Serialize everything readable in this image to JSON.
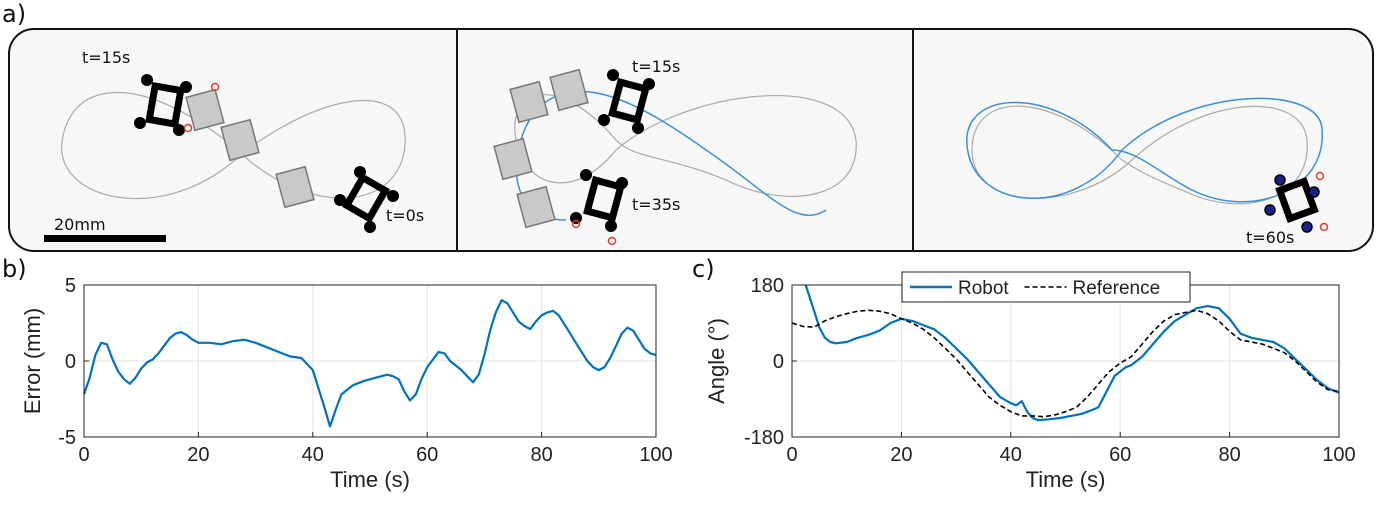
{
  "panel_labels": {
    "a": "a)",
    "b": "b)",
    "c": "c)"
  },
  "photo_panel": {
    "scale_bar_label": "20mm",
    "time_labels": {
      "p1_start": "t=15s",
      "p1_end": "t=0s",
      "p2_top": "t=15s",
      "p2_bottom": "t=35s",
      "p3": "t=60s"
    },
    "colors": {
      "robot": "#000000",
      "ghost_robot": "#c8c8c8",
      "reference_path": "#a8a8a8",
      "robot_path": "#3b8fd8",
      "target_marker": "#e03c31"
    }
  },
  "chart_data": [
    {
      "type": "line",
      "title": "",
      "xlabel": "Time (s)",
      "ylabel": "Error (mm)",
      "xlim": [
        0,
        100
      ],
      "ylim": [
        -5,
        5
      ],
      "xticks": [
        0,
        20,
        40,
        60,
        80,
        100
      ],
      "yticks": [
        -5,
        0,
        5
      ],
      "grid": true,
      "series": [
        {
          "color": "#0072bd",
          "x": [
            0,
            1,
            2,
            3,
            4,
            5,
            6,
            7,
            8,
            9,
            10,
            11,
            12,
            13,
            14,
            15,
            16,
            17,
            18,
            19,
            20,
            22,
            24,
            26,
            28,
            30,
            32,
            34,
            36,
            38,
            40,
            41,
            42,
            43,
            44,
            45,
            47,
            49,
            51,
            53,
            54,
            55,
            56,
            57,
            58,
            59,
            60,
            62,
            63,
            64,
            66,
            67,
            68,
            69,
            70,
            71,
            72,
            73,
            74,
            75,
            76,
            77,
            78,
            79,
            80,
            81,
            82,
            83,
            84,
            85,
            86,
            87,
            88,
            89,
            90,
            91,
            92,
            93,
            94,
            95,
            96,
            97,
            98,
            99,
            100
          ],
          "values": [
            -2.2,
            -1.1,
            0.4,
            1.2,
            1.1,
            0.1,
            -0.7,
            -1.2,
            -1.5,
            -1.1,
            -0.5,
            -0.1,
            0.1,
            0.5,
            1.0,
            1.5,
            1.8,
            1.9,
            1.7,
            1.4,
            1.2,
            1.2,
            1.1,
            1.3,
            1.4,
            1.2,
            0.9,
            0.6,
            0.3,
            0.2,
            -0.6,
            -1.8,
            -3.0,
            -4.3,
            -3.2,
            -2.2,
            -1.6,
            -1.3,
            -1.1,
            -0.9,
            -1.0,
            -1.2,
            -2.0,
            -2.6,
            -2.2,
            -1.2,
            -0.4,
            0.6,
            0.5,
            0.0,
            -0.6,
            -1.0,
            -1.4,
            -0.9,
            0.4,
            2.0,
            3.2,
            4.0,
            3.8,
            3.2,
            2.6,
            2.3,
            2.1,
            2.6,
            3.0,
            3.2,
            3.3,
            3.0,
            2.4,
            1.8,
            1.2,
            0.6,
            0.0,
            -0.4,
            -0.6,
            -0.4,
            0.2,
            1.0,
            1.8,
            2.2,
            2.0,
            1.4,
            0.8,
            0.5,
            0.4
          ]
        }
      ]
    },
    {
      "type": "line",
      "title": "",
      "xlabel": "Time (s)",
      "ylabel": "Angle (°)",
      "xlim": [
        0,
        100
      ],
      "ylim": [
        -180,
        180
      ],
      "xticks": [
        0,
        20,
        40,
        60,
        80,
        100
      ],
      "yticks": [
        -180,
        0,
        180
      ],
      "grid": true,
      "legend": "top",
      "series": [
        {
          "name": "Robot",
          "color": "#0072bd",
          "style": "solid",
          "x": [
            2.5,
            4,
            5,
            6,
            7,
            8,
            10,
            12,
            14,
            16,
            18,
            20,
            22,
            24,
            26,
            28,
            30,
            32,
            34,
            36,
            38,
            40,
            41,
            42,
            43,
            44,
            45,
            47,
            49,
            51,
            53,
            55,
            56,
            57,
            58,
            59,
            60,
            61,
            62,
            64,
            66,
            68,
            70,
            72,
            74,
            76,
            78,
            80,
            82,
            84,
            86,
            88,
            90,
            92,
            94,
            96,
            98,
            100
          ],
          "values": [
            180,
            120,
            80,
            55,
            45,
            42,
            45,
            55,
            62,
            72,
            90,
            100,
            95,
            85,
            75,
            55,
            30,
            5,
            -25,
            -55,
            -85,
            -100,
            -105,
            -95,
            -120,
            -135,
            -140,
            -138,
            -135,
            -130,
            -125,
            -115,
            -110,
            -85,
            -60,
            -35,
            -25,
            -15,
            -10,
            10,
            40,
            70,
            95,
            110,
            125,
            130,
            125,
            100,
            65,
            55,
            50,
            45,
            30,
            5,
            -20,
            -45,
            -65,
            -75
          ]
        },
        {
          "name": "Reference",
          "color": "#000000",
          "style": "dashed",
          "x": [
            0,
            2,
            4,
            6,
            8,
            10,
            12,
            14,
            16,
            18,
            20,
            22,
            24,
            26,
            28,
            30,
            32,
            34,
            36,
            38,
            40,
            42,
            44,
            46,
            48,
            50,
            52,
            54,
            56,
            58,
            60,
            62,
            64,
            66,
            68,
            70,
            72,
            74,
            76,
            78,
            80,
            82,
            84,
            86,
            88,
            90,
            92,
            94,
            96,
            98,
            100
          ],
          "values": [
            90,
            82,
            80,
            95,
            105,
            112,
            118,
            120,
            118,
            112,
            100,
            90,
            75,
            55,
            30,
            5,
            -25,
            -55,
            -85,
            -105,
            -120,
            -130,
            -130,
            -132,
            -128,
            -120,
            -110,
            -85,
            -55,
            -25,
            -5,
            10,
            40,
            70,
            95,
            110,
            115,
            120,
            112,
            95,
            70,
            50,
            45,
            40,
            30,
            20,
            0,
            -25,
            -50,
            -68,
            -72
          ]
        }
      ]
    }
  ]
}
